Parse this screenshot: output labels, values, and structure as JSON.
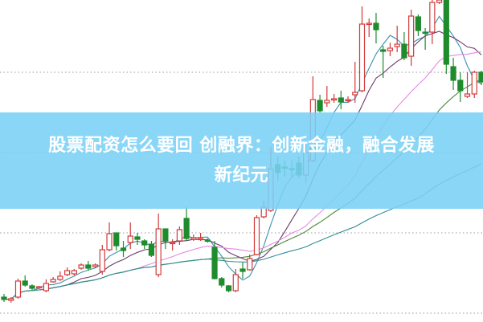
{
  "headline": {
    "line1": "股票配资怎么要回 创融界：创新金融，融合发展",
    "line2": "新纪元"
  },
  "colors": {
    "up": "#d23a3a",
    "down": "#1e8c2c",
    "banner": "#7ad0f6",
    "ma5": "#3a92b0",
    "ma10": "#6a3a6a",
    "ma20": "#e38be3",
    "ma30": "#4d8a3e",
    "ma60": "#2f8f94",
    "grid": "#999999"
  },
  "chart_data": {
    "type": "candlestick",
    "title": "",
    "xlabel": "",
    "ylabel": "",
    "ylim": [
      0,
      400
    ],
    "grid": "horizontal dotted",
    "moving_averages": [
      5,
      10,
      20,
      30,
      60
    ],
    "candles": [
      [
        30,
        27,
        34,
        24
      ],
      [
        26,
        28,
        30,
        23
      ],
      [
        30,
        50,
        53,
        28
      ],
      [
        50,
        45,
        57,
        43
      ],
      [
        44,
        41,
        46,
        39
      ],
      [
        42,
        43,
        44,
        40
      ],
      [
        38,
        47,
        52,
        36
      ],
      [
        49,
        52,
        55,
        48
      ],
      [
        52,
        56,
        62,
        50
      ],
      [
        58,
        63,
        67,
        56
      ],
      [
        59,
        63,
        65,
        57
      ],
      [
        66,
        70,
        72,
        64
      ],
      [
        70,
        66,
        75,
        63
      ],
      [
        68,
        70,
        72,
        66
      ],
      [
        62,
        89,
        95,
        58
      ],
      [
        89,
        109,
        123,
        87
      ],
      [
        110,
        94,
        110,
        88
      ],
      [
        91,
        88,
        100,
        80
      ],
      [
        98,
        106,
        123,
        90
      ],
      [
        105,
        102,
        110,
        95
      ],
      [
        100,
        95,
        102,
        90
      ],
      [
        96,
        82,
        100,
        80
      ],
      [
        58,
        115,
        134,
        55
      ],
      [
        115,
        100,
        115,
        90
      ],
      [
        97,
        98,
        102,
        88
      ],
      [
        100,
        114,
        118,
        95
      ],
      [
        128,
        103,
        142,
        100
      ],
      [
        102,
        104,
        108,
        100
      ],
      [
        102,
        103,
        110,
        100
      ],
      [
        101,
        100,
        103,
        98
      ],
      [
        92,
        53,
        100,
        52
      ],
      [
        53,
        45,
        55,
        42
      ],
      [
        44,
        38,
        45,
        36
      ],
      [
        38,
        58,
        65,
        36
      ],
      [
        65,
        62,
        73,
        53
      ],
      [
        64,
        78,
        83,
        63
      ],
      [
        83,
        129,
        132,
        82
      ],
      [
        130,
        142,
        150,
        128
      ],
      [
        138,
        190,
        217,
        136
      ],
      [
        195,
        185,
        205,
        175
      ],
      [
        192,
        191,
        200,
        180
      ],
      [
        190,
        189,
        200,
        178
      ],
      [
        197,
        182,
        205,
        178
      ],
      [
        182,
        210,
        225,
        172
      ],
      [
        200,
        276,
        305,
        198
      ],
      [
        275,
        262,
        282,
        260
      ],
      [
        272,
        275,
        293,
        267
      ],
      [
        276,
        277,
        283,
        272
      ],
      [
        278,
        273,
        287,
        264
      ],
      [
        275,
        276,
        280,
        272
      ],
      [
        282,
        285,
        323,
        272
      ],
      [
        287,
        370,
        392,
        285
      ],
      [
        370,
        371,
        377,
        354
      ],
      [
        371,
        363,
        384,
        346
      ],
      [
        338,
        336,
        343,
        303
      ],
      [
        337,
        340,
        347,
        330
      ],
      [
        342,
        345,
        368,
        335
      ],
      [
        345,
        328,
        360,
        325
      ],
      [
        330,
        380,
        388,
        318
      ],
      [
        379,
        362,
        382,
        355
      ],
      [
        360,
        359,
        365,
        338
      ],
      [
        360,
        397,
        400,
        345
      ],
      [
        397,
        400,
        402,
        395
      ],
      [
        400,
        320,
        402,
        308
      ],
      [
        317,
        300,
        328,
        288
      ],
      [
        300,
        287,
        310,
        273
      ],
      [
        280,
        283,
        310,
        278
      ],
      [
        283,
        310,
        312,
        278
      ],
      [
        310,
        298,
        312,
        294
      ]
    ]
  }
}
